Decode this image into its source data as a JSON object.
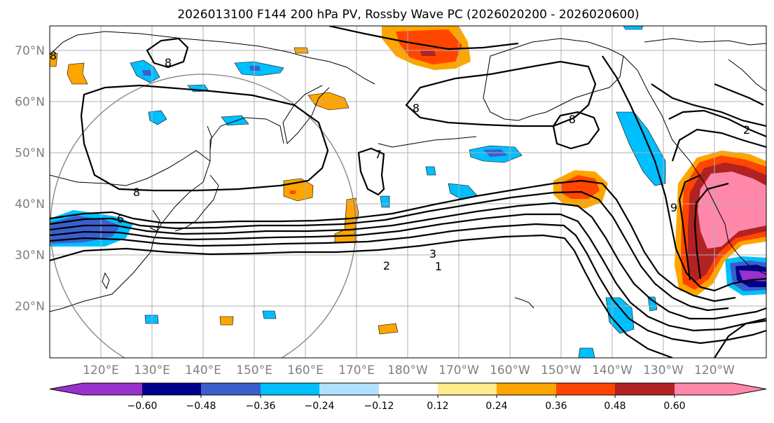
{
  "title": "2026013100 F144 200 hPa PV, Rossby Wave PC (2026020200 - 2026020600)",
  "lat_labels": [
    "70°N",
    "60°N",
    "50°N",
    "40°N",
    "30°N",
    "20°N"
  ],
  "lon_labels": [
    "120°E",
    "130°E",
    "140°E",
    "150°E",
    "160°E",
    "170°E",
    "180°W",
    "170°W",
    "160°W",
    "150°W",
    "140°W",
    "130°W",
    "120°W"
  ],
  "colorbar": {
    "colors": [
      "#9932CC",
      "#00008B",
      "#3A5FCD",
      "#00BFFF",
      "#B0E2FF",
      "#FFFFFF",
      "#FFEC8B",
      "#FFA500",
      "#FF4500",
      "#B22222",
      "#FF88AA"
    ],
    "ticks": [
      "−0.60",
      "−0.48",
      "−0.36",
      "−0.24",
      "−0.12",
      "0.12",
      "0.24",
      "0.36",
      "0.48",
      "0.60"
    ]
  },
  "contour_labels": [
    "8",
    "8",
    "8",
    "8",
    "8",
    "7",
    "6",
    "3",
    "2",
    "1",
    "2",
    "9"
  ]
}
